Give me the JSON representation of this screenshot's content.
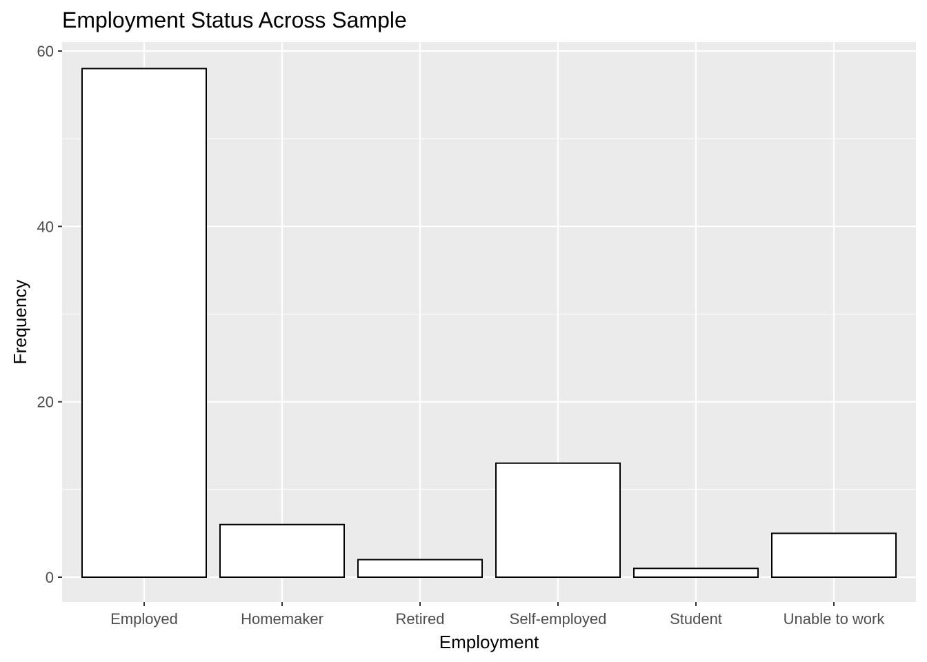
{
  "chart_data": {
    "type": "bar",
    "title": "Employment Status Across Sample",
    "xlabel": "Employment",
    "ylabel": "Frequency",
    "categories": [
      "Employed",
      "Homemaker",
      "Retired",
      "Self-employed",
      "Student",
      "Unable to work"
    ],
    "values": [
      58,
      6,
      2,
      13,
      1,
      5
    ],
    "ylim": [
      0,
      60
    ],
    "yticks": [
      "0",
      "20",
      "40",
      "60"
    ],
    "grid": true,
    "colors": {
      "panel_background": "#ebebeb",
      "bar_fill": "#ffffff",
      "bar_outline": "#000000"
    }
  }
}
